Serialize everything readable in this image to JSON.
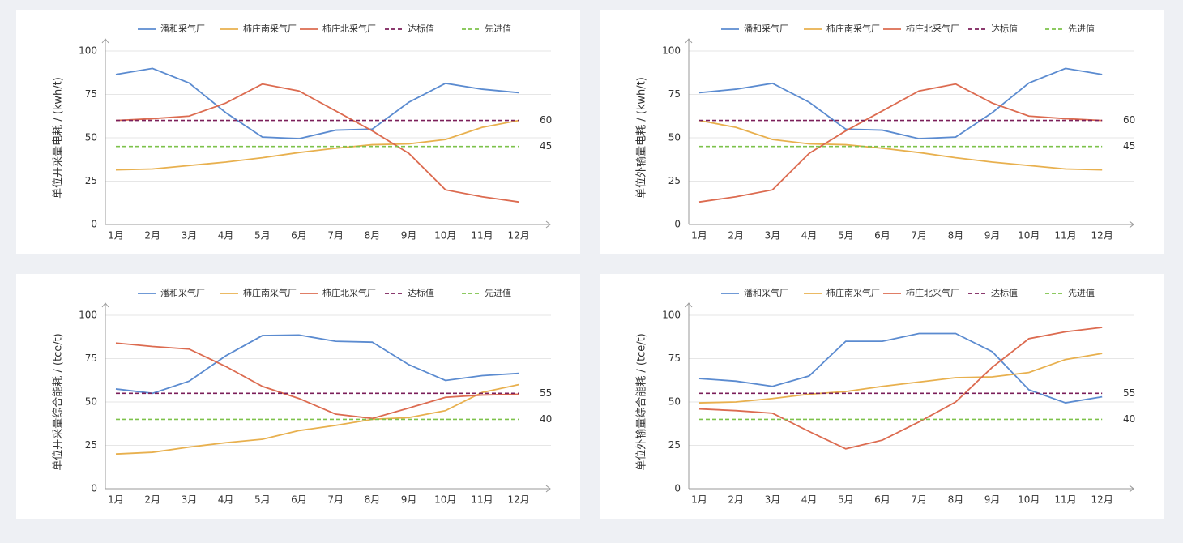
{
  "chart_data": [
    {
      "type": "line",
      "y_label": "单位开采量电耗 / (kwh/t)",
      "categories": [
        "1月",
        "2月",
        "3月",
        "4月",
        "5月",
        "6月",
        "7月",
        "8月",
        "9月",
        "10月",
        "11月",
        "12月"
      ],
      "ylim": [
        0,
        100
      ],
      "yticks": [
        0,
        25,
        50,
        75,
        100
      ],
      "grid": true,
      "series": [
        {
          "name": "潘和采气厂",
          "color": "#5b8bd0",
          "values": [
            86.5,
            90,
            81.6,
            64.5,
            50.4,
            49.5,
            54.4,
            55,
            70.5,
            81.4,
            78,
            76
          ]
        },
        {
          "name": "柿庄南采气厂",
          "color": "#e8b04e",
          "values": [
            31.5,
            32,
            34,
            36,
            38.5,
            41.5,
            44,
            46,
            46.5,
            49,
            56,
            60
          ]
        },
        {
          "name": "柿庄北采气厂",
          "color": "#dc6b50",
          "values": [
            60,
            61,
            62.5,
            70,
            81,
            77,
            65.5,
            54,
            41,
            20,
            16,
            13
          ]
        },
        {
          "name": "达标值",
          "color": "#7b1f5a",
          "dashed": true,
          "values": [
            60,
            60,
            60,
            60,
            60,
            60,
            60,
            60,
            60,
            60,
            60,
            60
          ]
        },
        {
          "name": "先进值",
          "color": "#7dc24b",
          "dashed": true,
          "values": [
            45,
            45,
            45,
            45,
            45,
            45,
            45,
            45,
            45,
            45,
            45,
            45
          ]
        }
      ]
    },
    {
      "type": "line",
      "y_label": "单位外输量电耗 / (kwh/t)",
      "categories": [
        "1月",
        "2月",
        "3月",
        "4月",
        "5月",
        "6月",
        "7月",
        "8月",
        "9月",
        "10月",
        "11月",
        "12月"
      ],
      "ylim": [
        0,
        100
      ],
      "yticks": [
        0,
        25,
        50,
        75,
        100
      ],
      "grid": true,
      "series": [
        {
          "name": "潘和采气厂",
          "color": "#5b8bd0",
          "values": [
            76,
            78,
            81.4,
            70.5,
            55,
            54.4,
            49.5,
            50.4,
            64.5,
            81.6,
            90,
            86.5
          ]
        },
        {
          "name": "柿庄南采气厂",
          "color": "#e8b04e",
          "values": [
            60,
            56,
            49,
            46.5,
            46,
            44,
            41.5,
            38.5,
            36,
            34,
            32,
            31.5
          ]
        },
        {
          "name": "柿庄北采气厂",
          "color": "#dc6b50",
          "values": [
            13,
            16,
            20,
            41,
            54,
            65.5,
            77,
            81,
            70,
            62.5,
            61,
            60
          ]
        },
        {
          "name": "达标值",
          "color": "#7b1f5a",
          "dashed": true,
          "values": [
            60,
            60,
            60,
            60,
            60,
            60,
            60,
            60,
            60,
            60,
            60,
            60
          ]
        },
        {
          "name": "先进值",
          "color": "#7dc24b",
          "dashed": true,
          "values": [
            45,
            45,
            45,
            45,
            45,
            45,
            45,
            45,
            45,
            45,
            45,
            45
          ]
        }
      ]
    },
    {
      "type": "line",
      "y_label": "单位开采量综合能耗 / (tce/t)",
      "categories": [
        "1月",
        "2月",
        "3月",
        "4月",
        "5月",
        "6月",
        "7月",
        "8月",
        "9月",
        "10月",
        "11月",
        "12月"
      ],
      "ylim": [
        0,
        100
      ],
      "yticks": [
        0,
        25,
        50,
        75,
        100
      ],
      "grid": true,
      "series": [
        {
          "name": "潘和采气厂",
          "color": "#5b8bd0",
          "values": [
            57.5,
            55,
            62,
            76.6,
            88.3,
            88.6,
            85,
            84.5,
            71.5,
            62.4,
            65.2,
            66.5
          ]
        },
        {
          "name": "柿庄南采气厂",
          "color": "#e8b04e",
          "values": [
            20,
            21,
            24,
            26.5,
            28.5,
            33.5,
            36.5,
            40,
            41,
            45,
            55.5,
            60
          ]
        },
        {
          "name": "柿庄北采气厂",
          "color": "#dc6b50",
          "values": [
            84,
            82,
            80.5,
            70.5,
            59,
            52,
            43,
            40.5,
            46.5,
            52.7,
            54,
            54.5
          ]
        },
        {
          "name": "达标值",
          "color": "#7b1f5a",
          "dashed": true,
          "values": [
            55,
            55,
            55,
            55,
            55,
            55,
            55,
            55,
            55,
            55,
            55,
            55
          ]
        },
        {
          "name": "先进值",
          "color": "#7dc24b",
          "dashed": true,
          "values": [
            40,
            40,
            40,
            40,
            40,
            40,
            40,
            40,
            40,
            40,
            40,
            40
          ]
        }
      ]
    },
    {
      "type": "line",
      "y_label": "单位外输量综合能耗 / (tce/t)",
      "categories": [
        "1月",
        "2月",
        "3月",
        "4月",
        "5月",
        "6月",
        "7月",
        "8月",
        "9月",
        "10月",
        "11月",
        "12月"
      ],
      "ylim": [
        0,
        100
      ],
      "yticks": [
        0,
        25,
        50,
        75,
        100
      ],
      "grid": true,
      "series": [
        {
          "name": "潘和采气厂",
          "color": "#5b8bd0",
          "values": [
            63.5,
            62,
            59,
            65,
            85,
            85,
            89.5,
            89.5,
            79,
            57,
            49.5,
            53
          ]
        },
        {
          "name": "柿庄南采气厂",
          "color": "#e8b04e",
          "values": [
            49.5,
            50,
            52,
            54.5,
            56,
            59,
            61.5,
            64,
            64.5,
            67,
            74.5,
            78
          ]
        },
        {
          "name": "柿庄北采气厂",
          "color": "#dc6b50",
          "values": [
            46,
            45,
            43.5,
            33,
            23,
            28,
            38.5,
            50,
            70,
            86.5,
            90.5,
            93
          ]
        },
        {
          "name": "达标值",
          "color": "#7b1f5a",
          "dashed": true,
          "values": [
            55,
            55,
            55,
            55,
            55,
            55,
            55,
            55,
            55,
            55,
            55,
            55
          ]
        },
        {
          "name": "先进值",
          "color": "#7dc24b",
          "dashed": true,
          "values": [
            40,
            40,
            40,
            40,
            40,
            40,
            40,
            40,
            40,
            40,
            40,
            40
          ]
        }
      ]
    }
  ]
}
